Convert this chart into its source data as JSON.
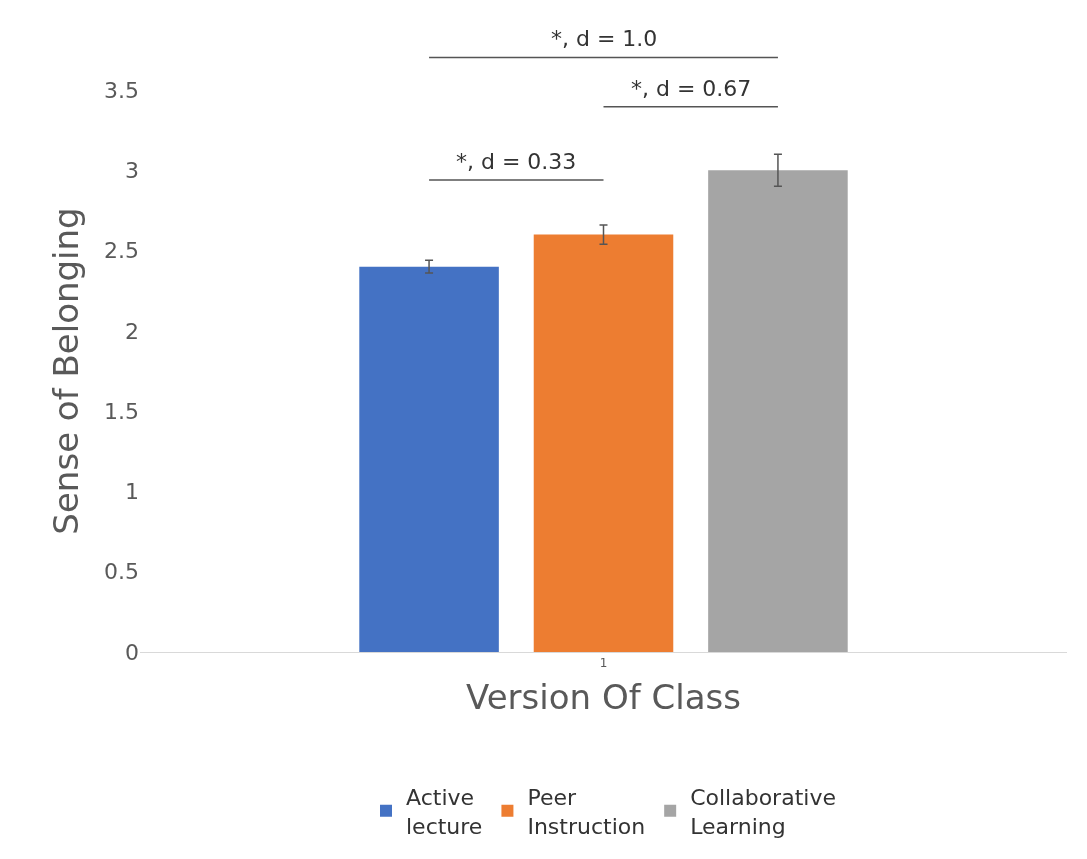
{
  "chart_data": {
    "type": "bar",
    "xlabel": "Version Of Class",
    "ylabel": "Sense of Belonging",
    "categories": [
      "1"
    ],
    "series": [
      {
        "name": "Active lecture",
        "color": "#4472c4",
        "values": [
          2.4
        ],
        "errors": [
          0.04
        ]
      },
      {
        "name": "Peer Instruction",
        "color": "#ed7d31",
        "values": [
          2.6
        ],
        "errors": [
          0.06
        ]
      },
      {
        "name": "Collaborative Learning",
        "color": "#a5a5a5",
        "values": [
          3.0
        ],
        "errors": [
          0.1
        ]
      }
    ],
    "ylim": [
      0,
      3.5
    ],
    "yticks": [
      0,
      0.5,
      1,
      1.5,
      2,
      2.5,
      3,
      3.5
    ],
    "annotations": [
      "*, d = 1.0",
      "*, d = 0.67",
      "*, d = 0.33"
    ],
    "grid": false,
    "legend": "bottom"
  }
}
